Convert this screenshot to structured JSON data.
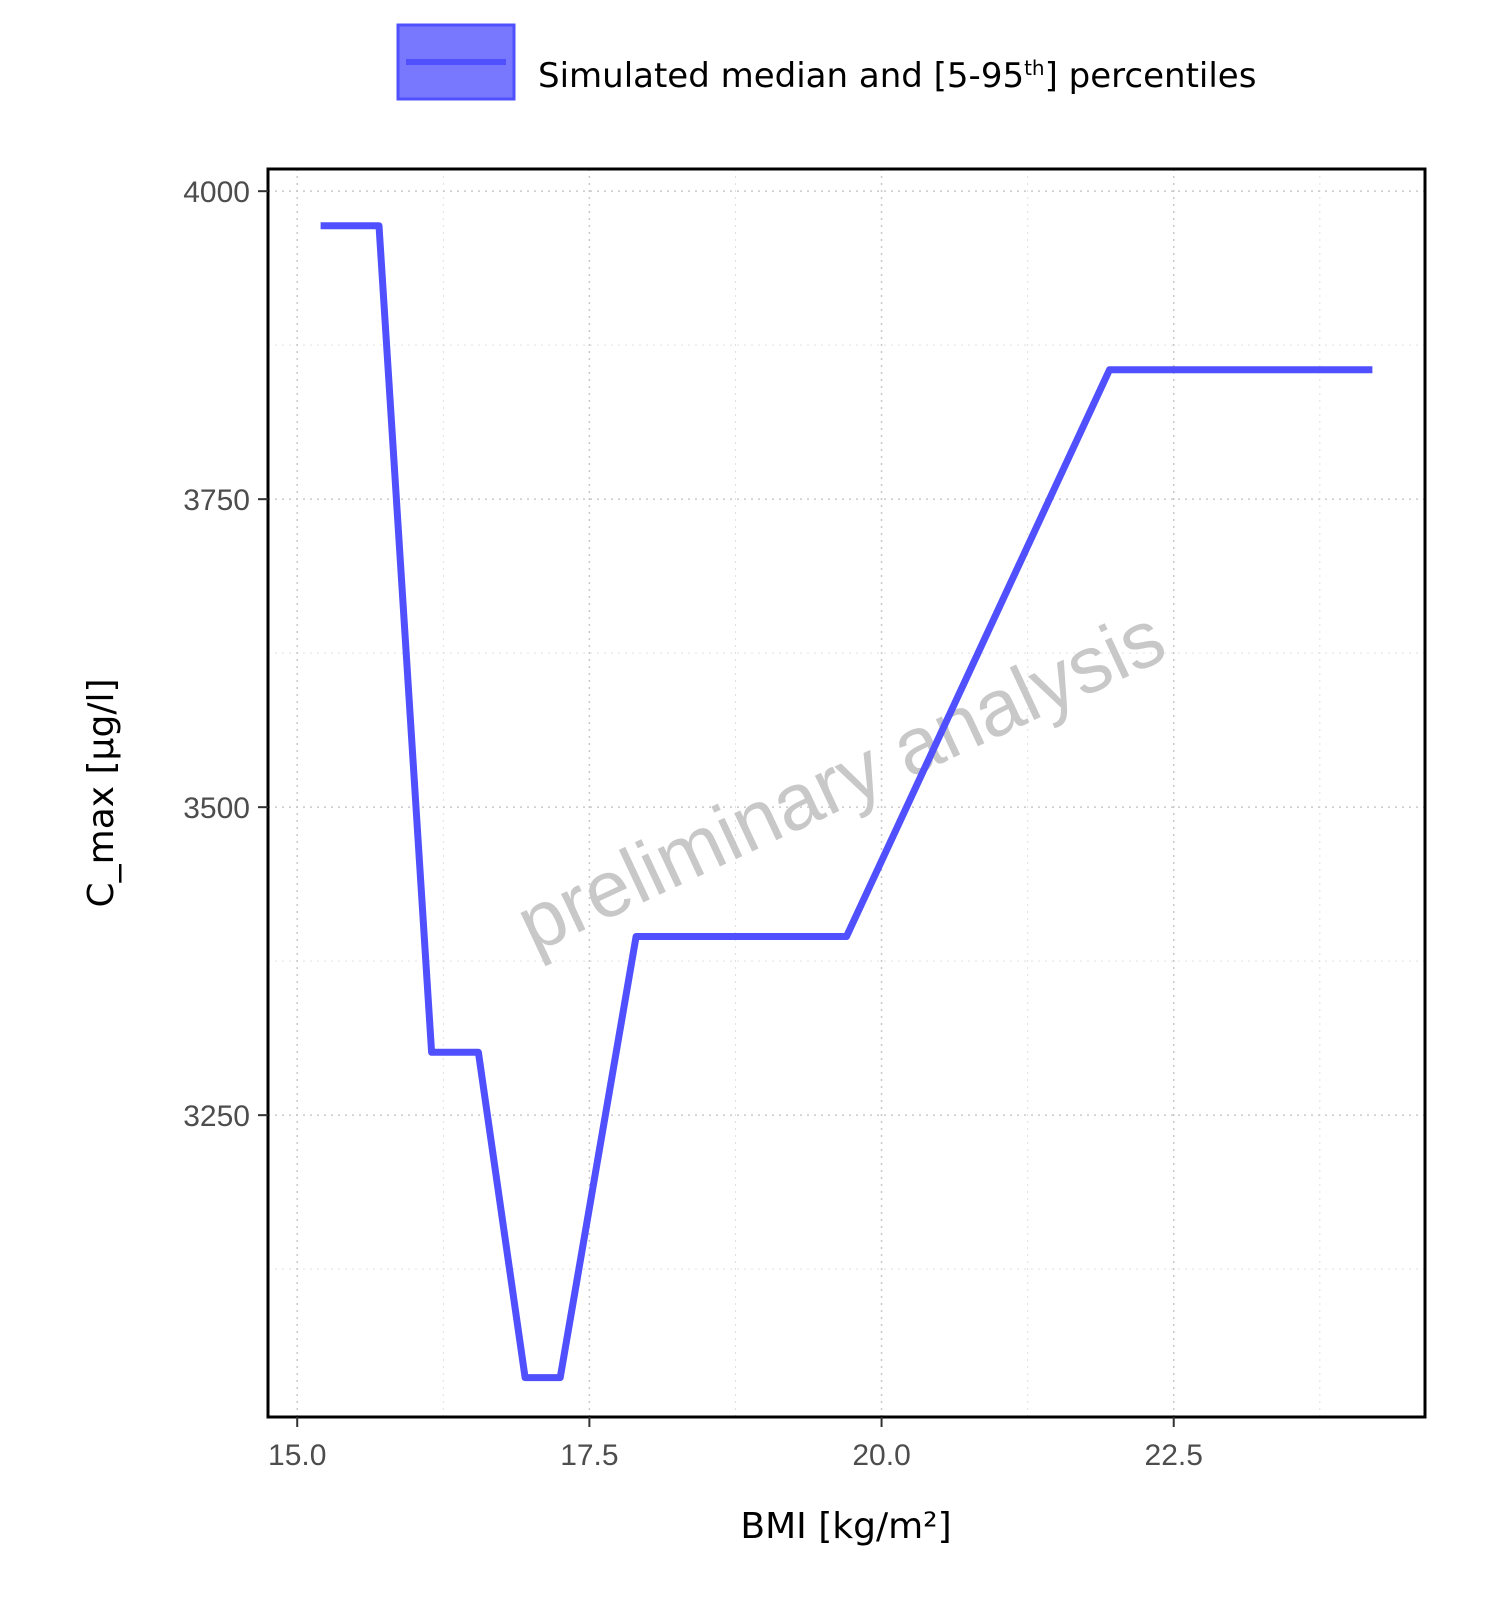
{
  "chart_data": {
    "type": "line",
    "title": "",
    "xlabel": "BMI [kg/m²]",
    "ylabel": "C_max [µg/l]",
    "xlim": [
      14.75,
      24.65
    ],
    "ylim": [
      3005,
      4018
    ],
    "x_ticks": [
      15.0,
      17.5,
      20.0,
      22.5
    ],
    "x_tick_labels": [
      "15.0",
      "17.5",
      "20.0",
      "22.5"
    ],
    "x_minor_ticks": [
      16.25,
      18.75,
      21.25,
      23.75
    ],
    "y_ticks": [
      3250,
      3500,
      3750,
      4000
    ],
    "y_tick_labels": [
      "3250",
      "3500",
      "3750",
      "4000"
    ],
    "y_minor_ticks": [
      3125,
      3375,
      3625,
      3875
    ],
    "grid": true,
    "legend_position": "top",
    "watermark": "preliminary analysis",
    "colors": {
      "series": "#5050ff",
      "legend_fill": "#7878ff",
      "watermark": "#c8c8c8"
    },
    "series": [
      {
        "name": "Simulated median and [5-95th] percentiles",
        "x": [
          15.2,
          15.7,
          16.15,
          16.55,
          16.95,
          17.25,
          17.9,
          19.7,
          21.95,
          24.2
        ],
        "y": [
          3972,
          3972,
          3301,
          3301,
          3037,
          3037,
          3395,
          3395,
          3855,
          3855
        ]
      }
    ]
  },
  "legend": {
    "label_main": "Simulated median and [5-95",
    "label_sup": "th",
    "label_end": "] percentiles"
  }
}
